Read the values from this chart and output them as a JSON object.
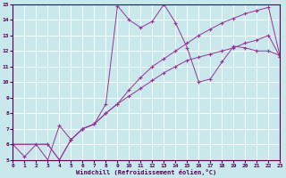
{
  "xlabel": "Windchill (Refroidissement éolien,°C)",
  "background_color": "#c8e8ec",
  "grid_color": "#ffffff",
  "line_color": "#993399",
  "xlim": [
    0,
    23
  ],
  "ylim": [
    5,
    15
  ],
  "yticks": [
    5,
    6,
    7,
    8,
    9,
    10,
    11,
    12,
    13,
    14,
    15
  ],
  "xticks": [
    0,
    1,
    2,
    3,
    4,
    5,
    6,
    7,
    8,
    9,
    10,
    11,
    12,
    13,
    14,
    15,
    16,
    17,
    18,
    19,
    20,
    21,
    22,
    23
  ],
  "line1_x": [
    0,
    1,
    2,
    3,
    4,
    5,
    6,
    7,
    8,
    9,
    10,
    11,
    12,
    13,
    14,
    15,
    16,
    17,
    18,
    19,
    20,
    21,
    22,
    23
  ],
  "line1_y": [
    6.0,
    5.2,
    6.0,
    5.0,
    7.2,
    6.3,
    7.0,
    7.3,
    8.6,
    14.9,
    14.0,
    13.5,
    13.9,
    15.0,
    13.8,
    12.2,
    10.0,
    10.2,
    11.3,
    12.3,
    12.2,
    12.0,
    12.0,
    11.7
  ],
  "line2_x": [
    0,
    3,
    4,
    5,
    6,
    7,
    8,
    9,
    10,
    11,
    12,
    13,
    14,
    15,
    16,
    17,
    18,
    19,
    20,
    21,
    22,
    23
  ],
  "line2_y": [
    6.0,
    6.0,
    5.0,
    6.3,
    7.0,
    7.3,
    8.0,
    8.6,
    9.1,
    9.6,
    10.1,
    10.6,
    11.0,
    11.4,
    11.6,
    11.8,
    12.0,
    12.2,
    12.5,
    12.7,
    13.0,
    11.6
  ],
  "line3_x": [
    0,
    3,
    4,
    5,
    6,
    7,
    8,
    9,
    10,
    11,
    12,
    13,
    14,
    15,
    16,
    17,
    18,
    19,
    20,
    21,
    22,
    23
  ],
  "line3_y": [
    6.0,
    6.0,
    5.0,
    6.3,
    7.0,
    7.3,
    8.0,
    8.6,
    9.5,
    10.3,
    11.0,
    11.5,
    12.0,
    12.5,
    13.0,
    13.4,
    13.8,
    14.1,
    14.4,
    14.6,
    14.8,
    11.6
  ]
}
